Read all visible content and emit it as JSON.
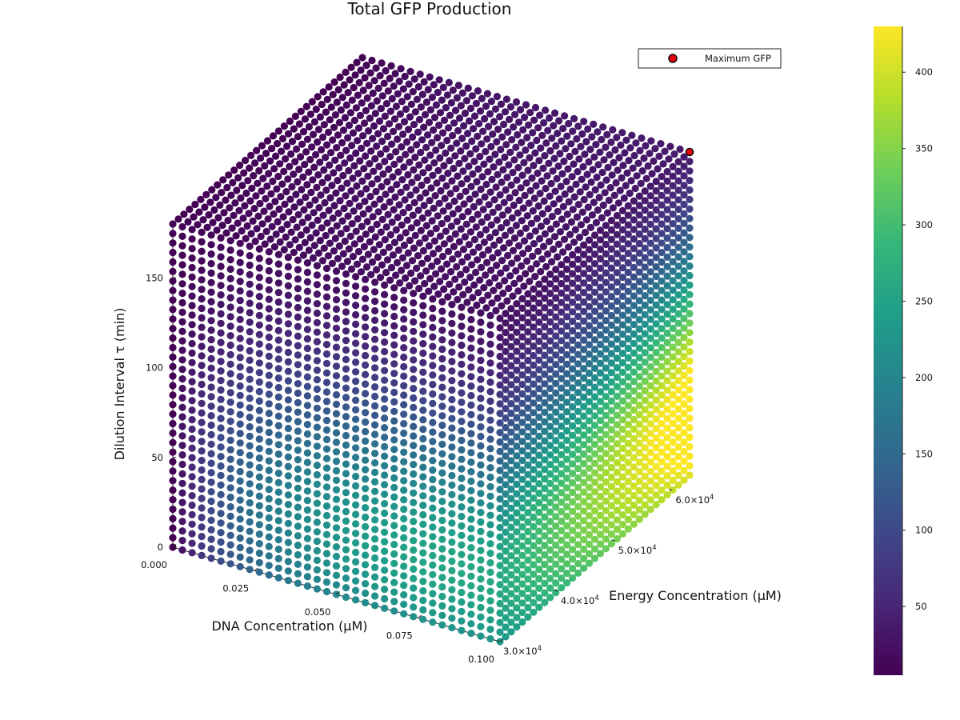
{
  "chart_data": {
    "type": "scatter3d",
    "title": "Total GFP Production",
    "x": {
      "label": "DNA Concentration (μM)",
      "range": [
        0.0,
        0.1
      ],
      "ticks": [
        0.0,
        0.025,
        0.05,
        0.075,
        0.1
      ],
      "tick_labels": [
        "0.000",
        "0.025",
        "0.050",
        "0.075",
        "0.100"
      ]
    },
    "y": {
      "label": "Energy Concentration (μM)",
      "range": [
        30000,
        63000
      ],
      "ticks": [
        30000,
        40000,
        50000,
        60000
      ],
      "tick_labels": [
        {
          "mantissa": "3.0×10",
          "exp": "4"
        },
        {
          "mantissa": "4.0×10",
          "exp": "4"
        },
        {
          "mantissa": "5.0×10",
          "exp": "4"
        },
        {
          "mantissa": "6.0×10",
          "exp": "4"
        }
      ]
    },
    "z": {
      "label": "Dilution Interval τ (min)",
      "range": [
        0,
        180
      ],
      "ticks": [
        0,
        50,
        100,
        150
      ],
      "tick_labels": [
        "0",
        "50",
        "100",
        "150"
      ]
    },
    "grid_points_per_axis": 35,
    "value_name": "Total GFP",
    "colormap": "viridis",
    "colorbar": {
      "range": [
        5,
        430
      ],
      "ticks": [
        50,
        100,
        150,
        200,
        250,
        300,
        350,
        400
      ],
      "tick_labels": [
        "50",
        "100",
        "150",
        "200",
        "250",
        "300",
        "350",
        "400"
      ]
    },
    "maximum_point": {
      "dna": 0.1,
      "energy": 63000,
      "tau": 180,
      "gfp": 430
    },
    "legend": {
      "label": "Maximum GFP",
      "color": "#e8000b",
      "placement": "top-right"
    }
  }
}
